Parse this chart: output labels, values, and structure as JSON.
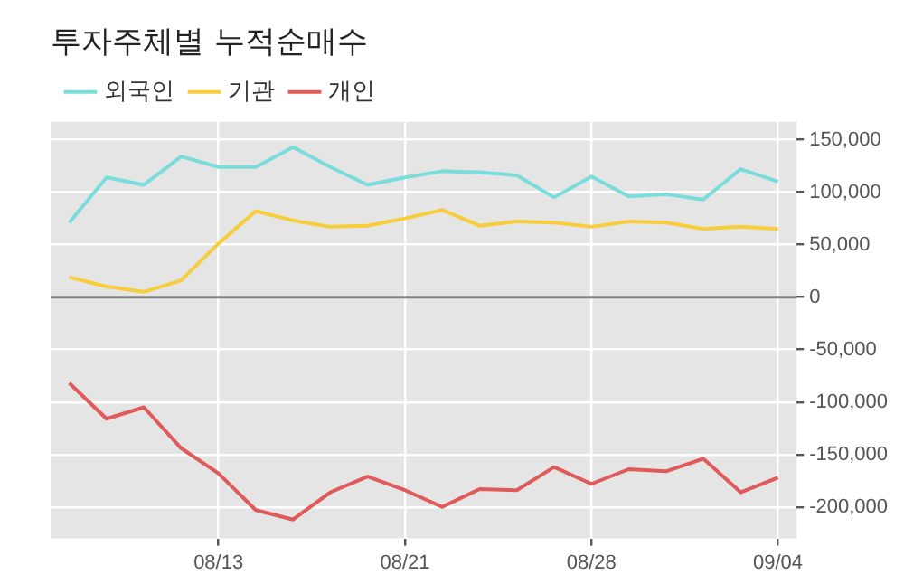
{
  "chart_data": {
    "type": "line",
    "title": "투자주체별 누적순매수",
    "categories": [
      null,
      null,
      null,
      null,
      "08/13",
      null,
      null,
      null,
      null,
      "08/21",
      null,
      null,
      null,
      null,
      "08/28",
      null,
      null,
      null,
      null,
      "09/04"
    ],
    "series": [
      {
        "name": "외국인",
        "color": "#7adcdb",
        "values": [
          71000,
          114000,
          107000,
          134000,
          124000,
          124000,
          143000,
          124000,
          107000,
          114000,
          120000,
          119000,
          116000,
          95000,
          115000,
          96000,
          98000,
          93000,
          122000,
          110000
        ]
      },
      {
        "name": "기관",
        "color": "#f7cd3b",
        "values": [
          19000,
          10000,
          5000,
          16000,
          51000,
          82000,
          73000,
          67000,
          68000,
          75000,
          83000,
          68000,
          72000,
          71000,
          67000,
          72000,
          71000,
          65000,
          67000,
          65000
        ]
      },
      {
        "name": "개인",
        "color": "#e05a5a",
        "values": [
          -82000,
          -116000,
          -105000,
          -144000,
          -168000,
          -203000,
          -212000,
          -186000,
          -171000,
          -184000,
          -200000,
          -183000,
          -184000,
          -162000,
          -178000,
          -164000,
          -166000,
          -154000,
          -186000,
          -172000
        ]
      }
    ],
    "ylim": [
      -230000,
      167000
    ],
    "yticks": [
      {
        "value": -200000,
        "label": "-200,000"
      },
      {
        "value": -150000,
        "label": "-150,000"
      },
      {
        "value": -100000,
        "label": "-100,000"
      },
      {
        "value": -50000,
        "label": "-50,000"
      },
      0,
      {
        "value": 50000,
        "label": "50,000"
      },
      {
        "value": 100000,
        "label": "100,000"
      },
      {
        "value": 150000,
        "label": "150,000"
      }
    ],
    "ref_lines": [
      {
        "axis": "y",
        "value": 0,
        "color": "#7f7f7f"
      }
    ],
    "grid": true,
    "legend": "top left",
    "marker": "none",
    "line_style": "solid"
  }
}
